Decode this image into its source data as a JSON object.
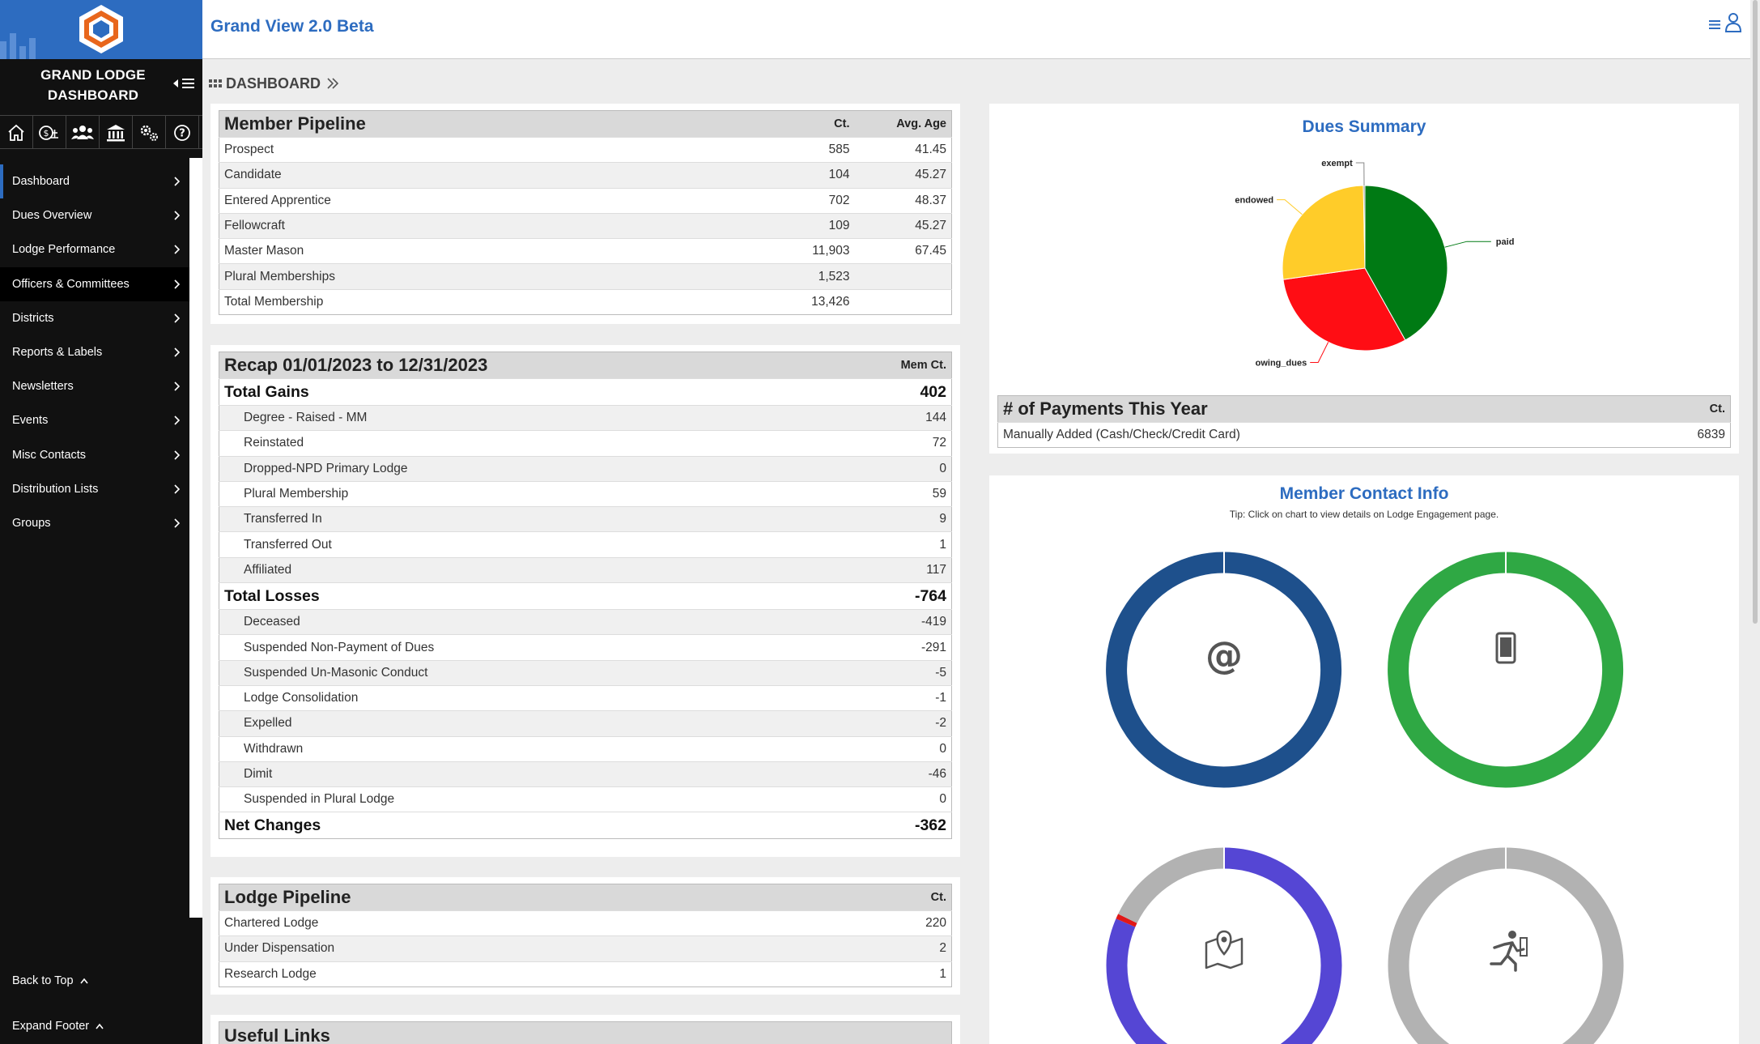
{
  "sidebar": {
    "title_line1": "GRAND LODGE",
    "title_line2": "DASHBOARD",
    "tools": [
      "home-icon",
      "scale-icon",
      "members-icon",
      "lodge-building-icon",
      "settings-icon",
      "help-icon"
    ],
    "items": [
      {
        "label": "Dashboard"
      },
      {
        "label": "Dues Overview"
      },
      {
        "label": "Lodge Performance"
      },
      {
        "label": "Officers & Committees"
      },
      {
        "label": "Districts"
      },
      {
        "label": "Reports & Labels"
      },
      {
        "label": "Newsletters"
      },
      {
        "label": "Events"
      },
      {
        "label": "Misc Contacts"
      },
      {
        "label": "Distribution Lists"
      },
      {
        "label": "Groups"
      }
    ],
    "back_to_top": "Back to Top",
    "expand_footer": "Expand Footer",
    "accent": "#2d6cc0"
  },
  "header": {
    "title": "Grand View 2.0 Beta"
  },
  "breadcrumb": {
    "label": "DASHBOARD"
  },
  "pipeline": {
    "title": "Member Pipeline",
    "col_ct": "Ct.",
    "col_age": "Avg. Age",
    "rows": [
      {
        "label": "Prospect",
        "ct": "585",
        "age": "41.45"
      },
      {
        "label": "Candidate",
        "ct": "104",
        "age": "45.27"
      },
      {
        "label": "Entered Apprentice",
        "ct": "702",
        "age": "48.37"
      },
      {
        "label": "Fellowcraft",
        "ct": "109",
        "age": "45.27"
      },
      {
        "label": "Master Mason",
        "ct": "11,903",
        "age": "67.45"
      },
      {
        "label": "Plural Memberships",
        "ct": "1,523",
        "age": ""
      },
      {
        "label": "Total Membership",
        "ct": "13,426",
        "age": ""
      }
    ]
  },
  "recap": {
    "title": "Recap 01/01/2023 to 12/31/2023",
    "col": "Mem Ct.",
    "gains_label": "Total Gains",
    "gains_value": "402",
    "gains": [
      {
        "label": "Degree - Raised - MM",
        "value": "144"
      },
      {
        "label": "Reinstated",
        "value": "72"
      },
      {
        "label": "Dropped-NPD Primary Lodge",
        "value": "0"
      },
      {
        "label": "Plural Membership",
        "value": "59"
      },
      {
        "label": "Transferred In",
        "value": "9"
      },
      {
        "label": "Transferred Out",
        "value": "1"
      },
      {
        "label": "Affiliated",
        "value": "117"
      }
    ],
    "losses_label": "Total Losses",
    "losses_value": "-764",
    "losses": [
      {
        "label": "Deceased",
        "value": "-419"
      },
      {
        "label": "Suspended Non-Payment of Dues",
        "value": "-291"
      },
      {
        "label": "Suspended Un-Masonic Conduct",
        "value": "-5"
      },
      {
        "label": "Lodge Consolidation",
        "value": "-1"
      },
      {
        "label": "Expelled",
        "value": "-2"
      },
      {
        "label": "Withdrawn",
        "value": "0"
      },
      {
        "label": "Dimit",
        "value": "-46"
      },
      {
        "label": "Suspended in Plural Lodge",
        "value": "0"
      }
    ],
    "net_label": "Net Changes",
    "net_value": "-362"
  },
  "lodge_pipeline": {
    "title": "Lodge Pipeline",
    "col": "Ct.",
    "rows": [
      {
        "label": "Chartered Lodge",
        "value": "220"
      },
      {
        "label": "Under Dispensation",
        "value": "2"
      },
      {
        "label": "Research Lodge",
        "value": "1"
      }
    ]
  },
  "useful_links": {
    "title": "Useful Links"
  },
  "dues": {
    "title": "Dues Summary",
    "payments_title": "# of Payments This Year",
    "payments_col": "Ct.",
    "payments_rows": [
      {
        "label": "Manually Added (Cash/Check/Credit Card)",
        "value": "6839"
      }
    ]
  },
  "chart_data": {
    "type": "pie",
    "categories": [
      "paid",
      "owing_dues",
      "endowed",
      "exempt"
    ],
    "values": [
      42,
      31,
      27,
      0.3
    ],
    "colors": [
      "#007a14",
      "#ff0d14",
      "#ffcc29",
      "#888888"
    ]
  },
  "contact": {
    "title": "Member Contact Info",
    "tip": "Tip: Click on chart to view details on Lodge Engagement page.",
    "donuts": [
      {
        "icon": "email-at-icon",
        "segments": [
          {
            "value": 99.9,
            "color": "#1e508c"
          },
          {
            "value": 0.1,
            "color": "#ffffff"
          }
        ]
      },
      {
        "icon": "mobile-phone-icon",
        "segments": [
          {
            "value": 99.9,
            "color": "#2fa844"
          },
          {
            "value": 0.1,
            "color": "#ffffff"
          }
        ]
      },
      {
        "icon": "map-location-icon",
        "segments": [
          {
            "value": 81.5,
            "color": "#5546d4"
          },
          {
            "value": 0.7,
            "color": "#e01818"
          },
          {
            "value": 17.8,
            "color": "#b2b2b2"
          }
        ]
      },
      {
        "icon": "running-person-icon",
        "segments": [
          {
            "value": 100,
            "color": "#b2b2b2"
          }
        ]
      }
    ]
  }
}
